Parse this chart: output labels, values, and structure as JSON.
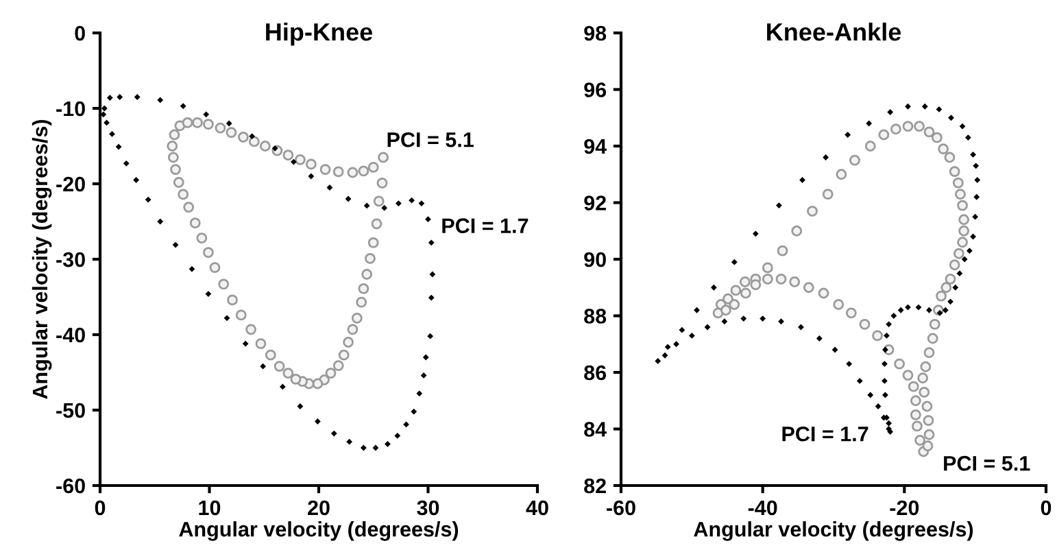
{
  "chart_data": [
    {
      "type": "scatter",
      "title": "Hip-Knee",
      "xlabel": "Angular velocity (degrees/s)",
      "ylabel": "Angular velocity (degrees/s)",
      "xlim": [
        0,
        40
      ],
      "ylim": [
        -60,
        0
      ],
      "xticks": [
        0,
        10,
        20,
        30,
        40
      ],
      "yticks": [
        -60,
        -50,
        -40,
        -30,
        -20,
        -10,
        0
      ],
      "grid": false,
      "series": [
        {
          "color": "#000000",
          "marker": "diamond",
          "x": [
            0.3,
            0.4,
            0.9,
            1.8,
            3.4,
            5.5,
            7.6,
            9.7,
            11.8,
            13.9,
            16.0,
            17.7,
            19.3,
            21.0,
            22.7,
            24.4,
            26.0,
            27.3,
            28.5,
            29.4,
            30.0,
            30.3,
            30.4,
            30.3,
            30.2,
            29.8,
            29.6,
            29.2,
            28.7,
            28.0,
            27.2,
            26.3,
            25.2,
            24.1,
            22.8,
            21.4,
            19.9,
            18.3,
            16.7,
            14.9,
            13.3,
            11.6,
            9.9,
            8.4,
            6.9,
            5.5,
            4.4,
            3.3,
            2.4,
            1.7,
            1.1,
            0.6
          ],
          "values": [
            -10.8,
            -10.0,
            -8.6,
            -8.5,
            -8.5,
            -8.9,
            -9.7,
            -10.8,
            -12.0,
            -13.7,
            -15.3,
            -17.1,
            -19.0,
            -20.5,
            -22.0,
            -22.9,
            -23.2,
            -22.6,
            -22.2,
            -22.6,
            -24.7,
            -27.8,
            -32.0,
            -35.1,
            -40.2,
            -43.0,
            -45.4,
            -47.8,
            -50.2,
            -51.9,
            -53.4,
            -54.5,
            -55.0,
            -55.0,
            -54.2,
            -53.1,
            -51.5,
            -49.5,
            -46.9,
            -44.2,
            -41.2,
            -37.8,
            -34.6,
            -31.3,
            -28.1,
            -25.0,
            -22.1,
            -19.5,
            -17.3,
            -15.1,
            -13.4,
            -11.9
          ]
        },
        {
          "color": "#9a9a9a",
          "marker": "circle",
          "x": [
            25.9,
            25.8,
            25.5,
            25.3,
            25.0,
            24.7,
            24.4,
            24.1,
            23.9,
            23.5,
            23.1,
            22.7,
            22.3,
            21.8,
            21.1,
            20.5,
            19.9,
            19.1,
            18.5,
            17.9,
            17.2,
            16.4,
            15.6,
            14.7,
            13.8,
            12.9,
            12.1,
            11.3,
            10.5,
            9.9,
            9.3,
            8.7,
            8.1,
            7.6,
            7.2,
            6.9,
            6.7,
            6.6,
            6.8,
            7.3,
            8.0,
            8.9,
            9.9,
            11.0,
            12.0,
            13.1,
            14.1,
            15.1,
            16.2,
            17.2,
            18.3,
            19.3,
            20.6,
            21.8,
            23.1,
            24.1,
            25.0
          ],
          "values": [
            -16.5,
            -19.9,
            -22.3,
            -25.3,
            -27.8,
            -29.9,
            -32.0,
            -33.9,
            -35.7,
            -37.8,
            -39.3,
            -41.0,
            -42.7,
            -44.1,
            -45.1,
            -46.0,
            -46.5,
            -46.5,
            -46.2,
            -45.9,
            -45.1,
            -44.2,
            -42.7,
            -41.2,
            -39.3,
            -37.4,
            -35.4,
            -33.3,
            -31.1,
            -29.1,
            -27.2,
            -25.2,
            -23.1,
            -21.4,
            -19.8,
            -18.1,
            -16.5,
            -15.0,
            -13.5,
            -12.3,
            -11.9,
            -11.9,
            -12.1,
            -12.6,
            -13.2,
            -13.8,
            -14.4,
            -15.0,
            -15.6,
            -16.2,
            -16.8,
            -17.4,
            -18.1,
            -18.4,
            -18.5,
            -18.3,
            -17.8
          ]
        }
      ],
      "annotations": [
        "PCI = 5.1",
        "PCI = 1.7"
      ]
    },
    {
      "type": "scatter",
      "title": "Knee-Ankle",
      "xlabel": "Angular velocity (degrees/s)",
      "xlim": [
        -60,
        0
      ],
      "ylim": [
        82,
        98
      ],
      "xticks": [
        -60,
        -40,
        -20,
        0
      ],
      "yticks": [
        82,
        84,
        86,
        88,
        90,
        92,
        94,
        96,
        98
      ],
      "grid": false,
      "series": [
        {
          "color": "#000000",
          "marker": "diamond",
          "x": [
            -22.0,
            -22.2,
            -22.5,
            -22.7,
            -22.8,
            -22.8,
            -22.7,
            -22.5,
            -22.2,
            -21.5,
            -20.5,
            -19.5,
            -18.0,
            -16.5,
            -15.0,
            -14.2,
            -13.5,
            -12.8,
            -12.2,
            -11.5,
            -10.8,
            -10.3,
            -10.0,
            -9.8,
            -9.7,
            -9.9,
            -10.3,
            -11.0,
            -11.8,
            -13.4,
            -15.1,
            -17.1,
            -19.5,
            -22.0,
            -25.0,
            -28.0,
            -31.1,
            -34.4,
            -37.7,
            -41.0,
            -44.0,
            -46.9,
            -49.3,
            -51.4,
            -53.4,
            -54.8,
            -53.8,
            -52.2,
            -50.0,
            -47.8,
            -45.4,
            -42.7,
            -40.0,
            -37.4,
            -34.6,
            -32.0,
            -29.8,
            -27.8,
            -26.3,
            -24.8,
            -23.7,
            -22.9,
            -22.2
          ],
          "values": [
            83.9,
            84.2,
            84.4,
            85.2,
            85.7,
            86.3,
            86.8,
            87.3,
            87.7,
            88.0,
            88.2,
            88.3,
            88.3,
            88.2,
            88.1,
            88.2,
            88.5,
            89.0,
            89.5,
            90.0,
            90.3,
            90.8,
            91.5,
            92.2,
            92.8,
            93.3,
            93.7,
            94.3,
            94.7,
            95.0,
            95.3,
            95.4,
            95.4,
            95.2,
            94.8,
            94.4,
            93.6,
            92.8,
            91.9,
            90.9,
            89.9,
            89.0,
            88.2,
            87.5,
            86.9,
            86.4,
            86.6,
            87.0,
            87.3,
            87.6,
            87.8,
            87.9,
            87.9,
            87.8,
            87.6,
            87.2,
            86.8,
            86.3,
            85.7,
            85.2,
            84.8,
            84.4,
            84.0
          ]
        },
        {
          "color": "#9a9a9a",
          "marker": "circle",
          "x": [
            -17.4,
            -17.0,
            -16.5,
            -16.0,
            -15.7,
            -15.2,
            -14.8,
            -14.1,
            -13.5,
            -12.9,
            -12.3,
            -11.8,
            -11.6,
            -11.6,
            -11.8,
            -12.1,
            -12.4,
            -12.9,
            -13.6,
            -14.5,
            -15.4,
            -16.5,
            -17.9,
            -19.5,
            -21.2,
            -22.9,
            -24.8,
            -27.0,
            -28.9,
            -30.8,
            -33.0,
            -35.2,
            -37.2,
            -39.3,
            -41.0,
            -42.5,
            -43.8,
            -44.9,
            -45.9,
            -46.3,
            -45.2,
            -44.0,
            -42.4,
            -41.0,
            -39.3,
            -37.4,
            -35.5,
            -33.5,
            -31.4,
            -29.3,
            -27.5,
            -25.6,
            -23.8,
            -22.2,
            -20.7,
            -19.5,
            -18.7,
            -18.4,
            -18.4,
            -18.2,
            -17.8,
            -17.3,
            -16.7,
            -16.5,
            -16.6,
            -16.8,
            -17.2
          ],
          "values": [
            85.8,
            86.2,
            86.7,
            87.2,
            87.7,
            88.2,
            88.7,
            89.0,
            89.3,
            89.8,
            90.2,
            90.6,
            91.0,
            91.4,
            91.9,
            92.3,
            92.7,
            93.1,
            93.6,
            93.9,
            94.3,
            94.5,
            94.7,
            94.7,
            94.6,
            94.4,
            94.0,
            93.5,
            93.0,
            92.3,
            91.7,
            91.0,
            90.3,
            89.7,
            89.3,
            89.2,
            88.9,
            88.6,
            88.4,
            88.1,
            88.2,
            88.4,
            88.8,
            89.1,
            89.3,
            89.3,
            89.2,
            89.0,
            88.8,
            88.4,
            88.1,
            87.7,
            87.3,
            86.8,
            86.3,
            85.9,
            85.5,
            85.0,
            84.5,
            84.1,
            83.6,
            83.2,
            83.4,
            83.8,
            84.3,
            84.8,
            85.3
          ]
        }
      ],
      "annotations": [
        "PCI = 1.7",
        "PCI = 5.1"
      ]
    }
  ]
}
